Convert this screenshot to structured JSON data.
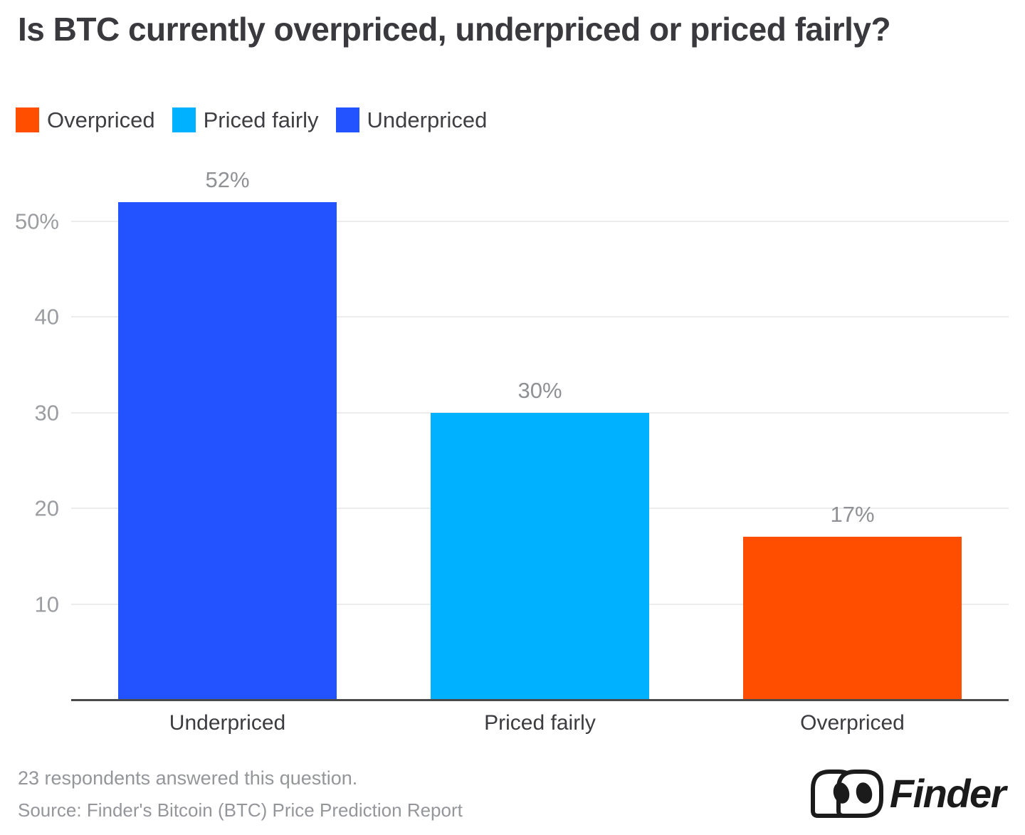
{
  "title": "Is BTC currently overpriced, underpriced or priced fairly?",
  "legend": {
    "position": "top-left",
    "items": [
      {
        "label": "Overpriced",
        "color": "#FF4E00"
      },
      {
        "label": "Priced fairly",
        "color": "#00B1FF"
      },
      {
        "label": "Underpriced",
        "color": "#2353FF"
      }
    ]
  },
  "chart_data": {
    "type": "bar",
    "title": "Is BTC currently overpriced, underpriced or priced fairly?",
    "categories": [
      "Underpriced",
      "Priced fairly",
      "Overpriced"
    ],
    "values": [
      52,
      30,
      17
    ],
    "value_labels": [
      "52%",
      "30%",
      "17%"
    ],
    "bar_colors": [
      "#2353FF",
      "#00B1FF",
      "#FF4E00"
    ],
    "xlabel": "",
    "ylabel": "",
    "ylim": [
      0,
      54.5
    ],
    "yticks": [
      10,
      20,
      30,
      40,
      50
    ],
    "ytick_labels": [
      "10",
      "20",
      "30",
      "40",
      "50%"
    ],
    "grid": true,
    "legend_position": "top-left"
  },
  "footer": {
    "note": "23 respondents answered this question.",
    "source": "Source: Finder's Bitcoin (BTC) Price Prediction Report"
  },
  "logo": {
    "text": "Finder",
    "icon": "finder-eyes-icon"
  },
  "colors": {
    "axis": "#4A4A4A",
    "grid": "#ECECEC",
    "title_text": "#3A3A3E",
    "axis_label_text": "#3C3C40",
    "tick_text": "#9B9DA1",
    "value_label_text": "#8F9194",
    "footer_text": "#94969A"
  }
}
